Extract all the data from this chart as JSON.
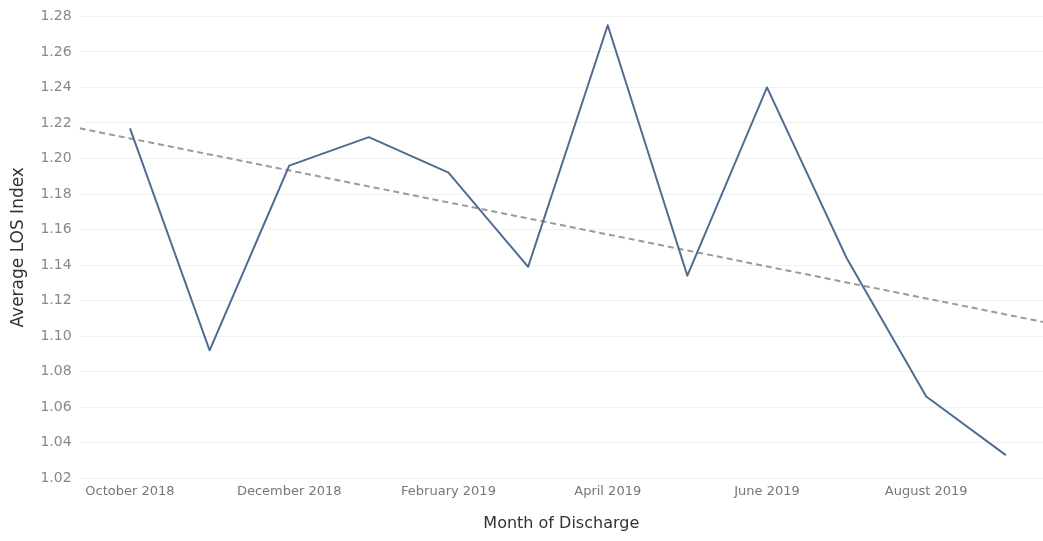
{
  "chart_data": {
    "type": "line",
    "xlabel": "Month of Discharge",
    "ylabel": "Average LOS Index",
    "x": [
      "2018-10",
      "2018-11",
      "2018-12",
      "2019-01",
      "2019-02",
      "2019-03",
      "2019-04",
      "2019-05",
      "2019-06",
      "2019-07",
      "2019-08",
      "2019-09"
    ],
    "series": [
      {
        "color": "#4e6d92",
        "values": [
          1.217,
          1.092,
          1.196,
          1.212,
          1.192,
          1.139,
          1.275,
          1.134,
          1.24,
          1.144,
          1.066,
          1.033
        ]
      },
      {
        "type": "line",
        "color": "#9a9a9a",
        "line_style": "dashed",
        "x": [
          "2018-09-12",
          "2019-09-15"
        ],
        "values": [
          1.217,
          1.108
        ]
      }
    ],
    "xlim": [
      "2018-09-12",
      "2019-09-15"
    ],
    "xticks": [
      {
        "value": "2018-10",
        "label": "October 2018"
      },
      {
        "value": "2018-12",
        "label": "December 2018"
      },
      {
        "value": "2019-02",
        "label": "February 2019"
      },
      {
        "value": "2019-04",
        "label": "April 2019"
      },
      {
        "value": "2019-06",
        "label": "June 2019"
      },
      {
        "value": "2019-08",
        "label": "August 2019"
      }
    ],
    "ylim": [
      1.02,
      1.28
    ],
    "yticks": [
      1.02,
      1.04,
      1.06,
      1.08,
      {
        "value": 1.1,
        "label": "1.10"
      },
      1.12,
      1.14,
      1.16,
      1.18,
      {
        "value": 1.2,
        "label": "1.20"
      },
      1.22,
      1.24,
      1.26,
      1.28
    ],
    "grid": "y",
    "legend": false,
    "marker": "none",
    "line_style": "solid"
  }
}
